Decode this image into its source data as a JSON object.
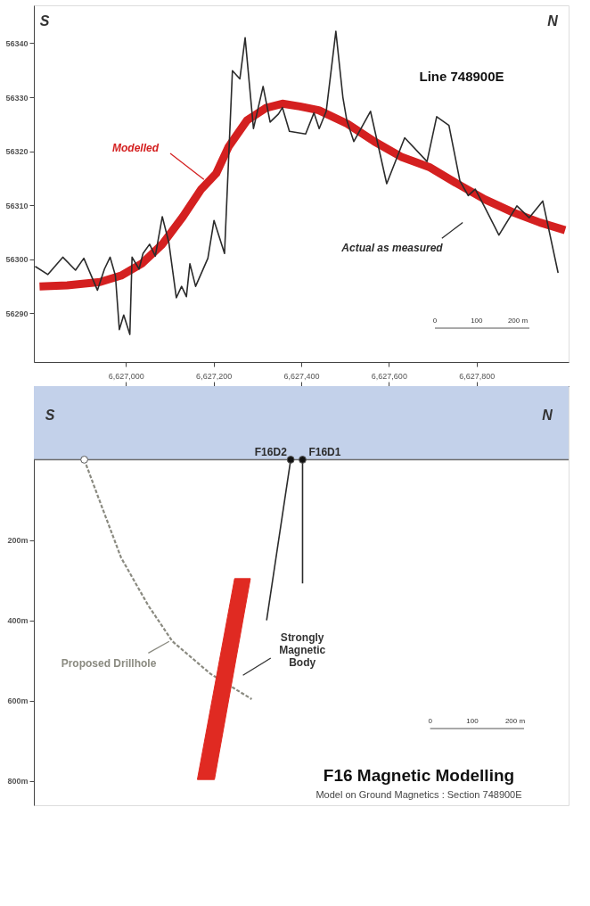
{
  "chart_data": [
    {
      "type": "line",
      "title": "Line 748900E",
      "xlim": [
        6626790,
        6628010
      ],
      "ylim": [
        56281,
        56347
      ],
      "xticks": [
        6627000,
        6627200,
        6627400,
        6627600,
        6627800
      ],
      "yticks": [
        56290,
        56300,
        56310,
        56320,
        56330,
        56340
      ],
      "tick_labels": "y",
      "grid": false,
      "annotations": [
        "S",
        "N",
        "0",
        "100",
        "200 m"
      ],
      "series": [
        {
          "name": "Modelled",
          "color": "#d42020",
          "x": [
            6626803,
            6626866,
            6626941,
            6626989,
            6627036,
            6627083,
            6627130,
            6627172,
            6627206,
            6627234,
            6627276,
            6627319,
            6627357,
            6627397,
            6627440,
            6627505,
            6627567,
            6627630,
            6627694,
            6627756,
            6627819,
            6627883,
            6627945,
            6628002
          ],
          "values": [
            56295.0,
            56295.2,
            56295.8,
            56297.0,
            56299.2,
            56302.8,
            56307.9,
            56313.0,
            56315.9,
            56320.8,
            56325.7,
            56328.0,
            56328.8,
            56328.3,
            56327.6,
            56325.1,
            56321.8,
            56318.9,
            56317.0,
            56314.0,
            56311.1,
            56308.7,
            56306.8,
            56305.4
          ]
        },
        {
          "name": "Actual as measured",
          "color": "#2b2b2b",
          "x": [
            6626793,
            6626822,
            6626856,
            6626885,
            6626904,
            6626935,
            6626951,
            6626964,
            6626976,
            6626985,
            6626995,
            6627009,
            6627014,
            6627030,
            6627039,
            6627054,
            6627067,
            6627083,
            6627098,
            6627115,
            6627127,
            6627138,
            6627146,
            6627159,
            6627187,
            6627201,
            6627225,
            6627243,
            6627260,
            6627272,
            6627291,
            6627313,
            6627329,
            6627348,
            6627357,
            6627373,
            6627410,
            6627429,
            6627441,
            6627457,
            6627479,
            6627495,
            6627504,
            6627520,
            6627558,
            6627595,
            6627636,
            6627687,
            6627709,
            6627737,
            6627762,
            6627781,
            6627797,
            6627819,
            6627851,
            6627892,
            6627920,
            6627951,
            6627986
          ],
          "values": [
            56298.7,
            56297.2,
            56300.4,
            56298.0,
            56300.2,
            56294.3,
            56298.2,
            56300.4,
            56297.0,
            56287.0,
            56289.7,
            56286.1,
            56300.4,
            56298.2,
            56301.1,
            56302.8,
            56300.6,
            56307.9,
            56303.1,
            56292.9,
            56295.0,
            56293.1,
            56299.2,
            56295.0,
            56300.2,
            56307.2,
            56301.1,
            56334.9,
            56333.4,
            56341.0,
            56324.2,
            56332.0,
            56325.4,
            56326.9,
            56328.1,
            56323.7,
            56323.2,
            56327.1,
            56324.2,
            56327.4,
            56342.2,
            56330.0,
            56325.7,
            56321.8,
            56327.4,
            56314.0,
            56322.5,
            56318.1,
            56326.4,
            56324.8,
            56314.5,
            56311.8,
            56313.0,
            56309.6,
            56304.5,
            56309.9,
            56307.7,
            56310.8,
            56297.5
          ]
        }
      ]
    },
    {
      "type": "line",
      "title": "F16  Magnetic Modelling",
      "subtitle": "Model on Ground Magnetics : Section 748900E",
      "xlim": [
        6626790,
        6628010
      ],
      "ylim": [
        860,
        -183
      ],
      "xticks": [
        {
          "value": 6627000,
          "label": "6,627,000"
        },
        {
          "value": 6627200,
          "label": "6,627,200"
        },
        {
          "value": 6627400,
          "label": "6,627,400"
        },
        {
          "value": 6627600,
          "label": "6,627,600"
        },
        {
          "value": 6627800,
          "label": "6,627,800"
        }
      ],
      "yticks": [
        {
          "value": 200,
          "label": "200m"
        },
        {
          "value": 400,
          "label": "400m"
        },
        {
          "value": 600,
          "label": "600m"
        },
        {
          "value": 800,
          "label": "800m"
        }
      ],
      "grid": false,
      "bands": [
        {
          "axis": "y",
          "from": -183,
          "to": 0,
          "color": "#c3d1ea"
        }
      ],
      "ref_lines": [
        {
          "axis": "y",
          "value": 0,
          "color": "#6e6e6e"
        }
      ],
      "annotations": [
        "S",
        "N",
        "0",
        "100",
        "200 m"
      ],
      "series": [
        {
          "name": "Proposed Drillhole",
          "color": "#8a8a80",
          "line_style": "dashed",
          "x": [
            6626905,
            6626934,
            6626989,
            6627051,
            6627106,
            6627193,
            6627287
          ],
          "values": [
            0,
            85,
            244,
            363,
            452,
            533,
            596
          ]
        },
        {
          "name": "F16D2",
          "color": "#2b2b2b",
          "x": [
            6627376,
            6627321
          ],
          "values": [
            0,
            400
          ]
        },
        {
          "name": "F16D1",
          "color": "#2b2b2b",
          "x": [
            6627403,
            6627403
          ],
          "values": [
            0,
            308
          ]
        },
        {
          "name": "Strongly Magnetic Body",
          "type": "area",
          "color": "#e02a22",
          "x": [
            6627248,
            6627284,
            6627202,
            6627163
          ],
          "values": [
            296,
            296,
            796,
            796
          ]
        },
        {
          "type": "scatter",
          "color": "#111111",
          "marker": "circle",
          "x": [
            6627376,
            6627403
          ],
          "values": [
            0,
            0
          ]
        },
        {
          "type": "scatter",
          "color": "#ffffff",
          "marker": "circle",
          "x": [
            6626905
          ],
          "values": [
            0
          ]
        }
      ]
    }
  ]
}
